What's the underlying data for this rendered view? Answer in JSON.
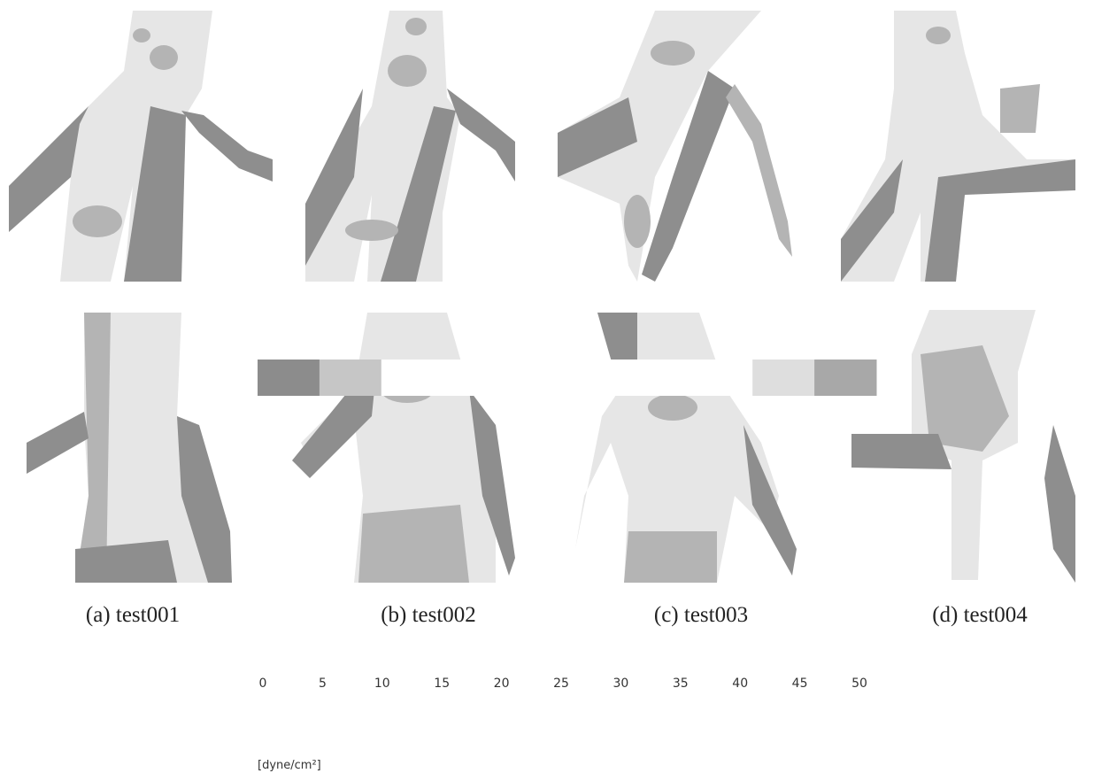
{
  "captions": [
    "(a) test001",
    "(b) test002",
    "(c) test003",
    "(d) test004"
  ],
  "legend": {
    "ticks": [
      0,
      5,
      10,
      15,
      20,
      25,
      30,
      35,
      40,
      45,
      50
    ],
    "colors": [
      "#8c8c8c",
      "#c6c6c6",
      "#ffffff",
      "#ffffff",
      "#ffffff",
      "#ffffff",
      "#ffffff",
      "#ffffff",
      "#dedede",
      "#a8a8a8"
    ],
    "unit": "[dyne/cm²]"
  }
}
